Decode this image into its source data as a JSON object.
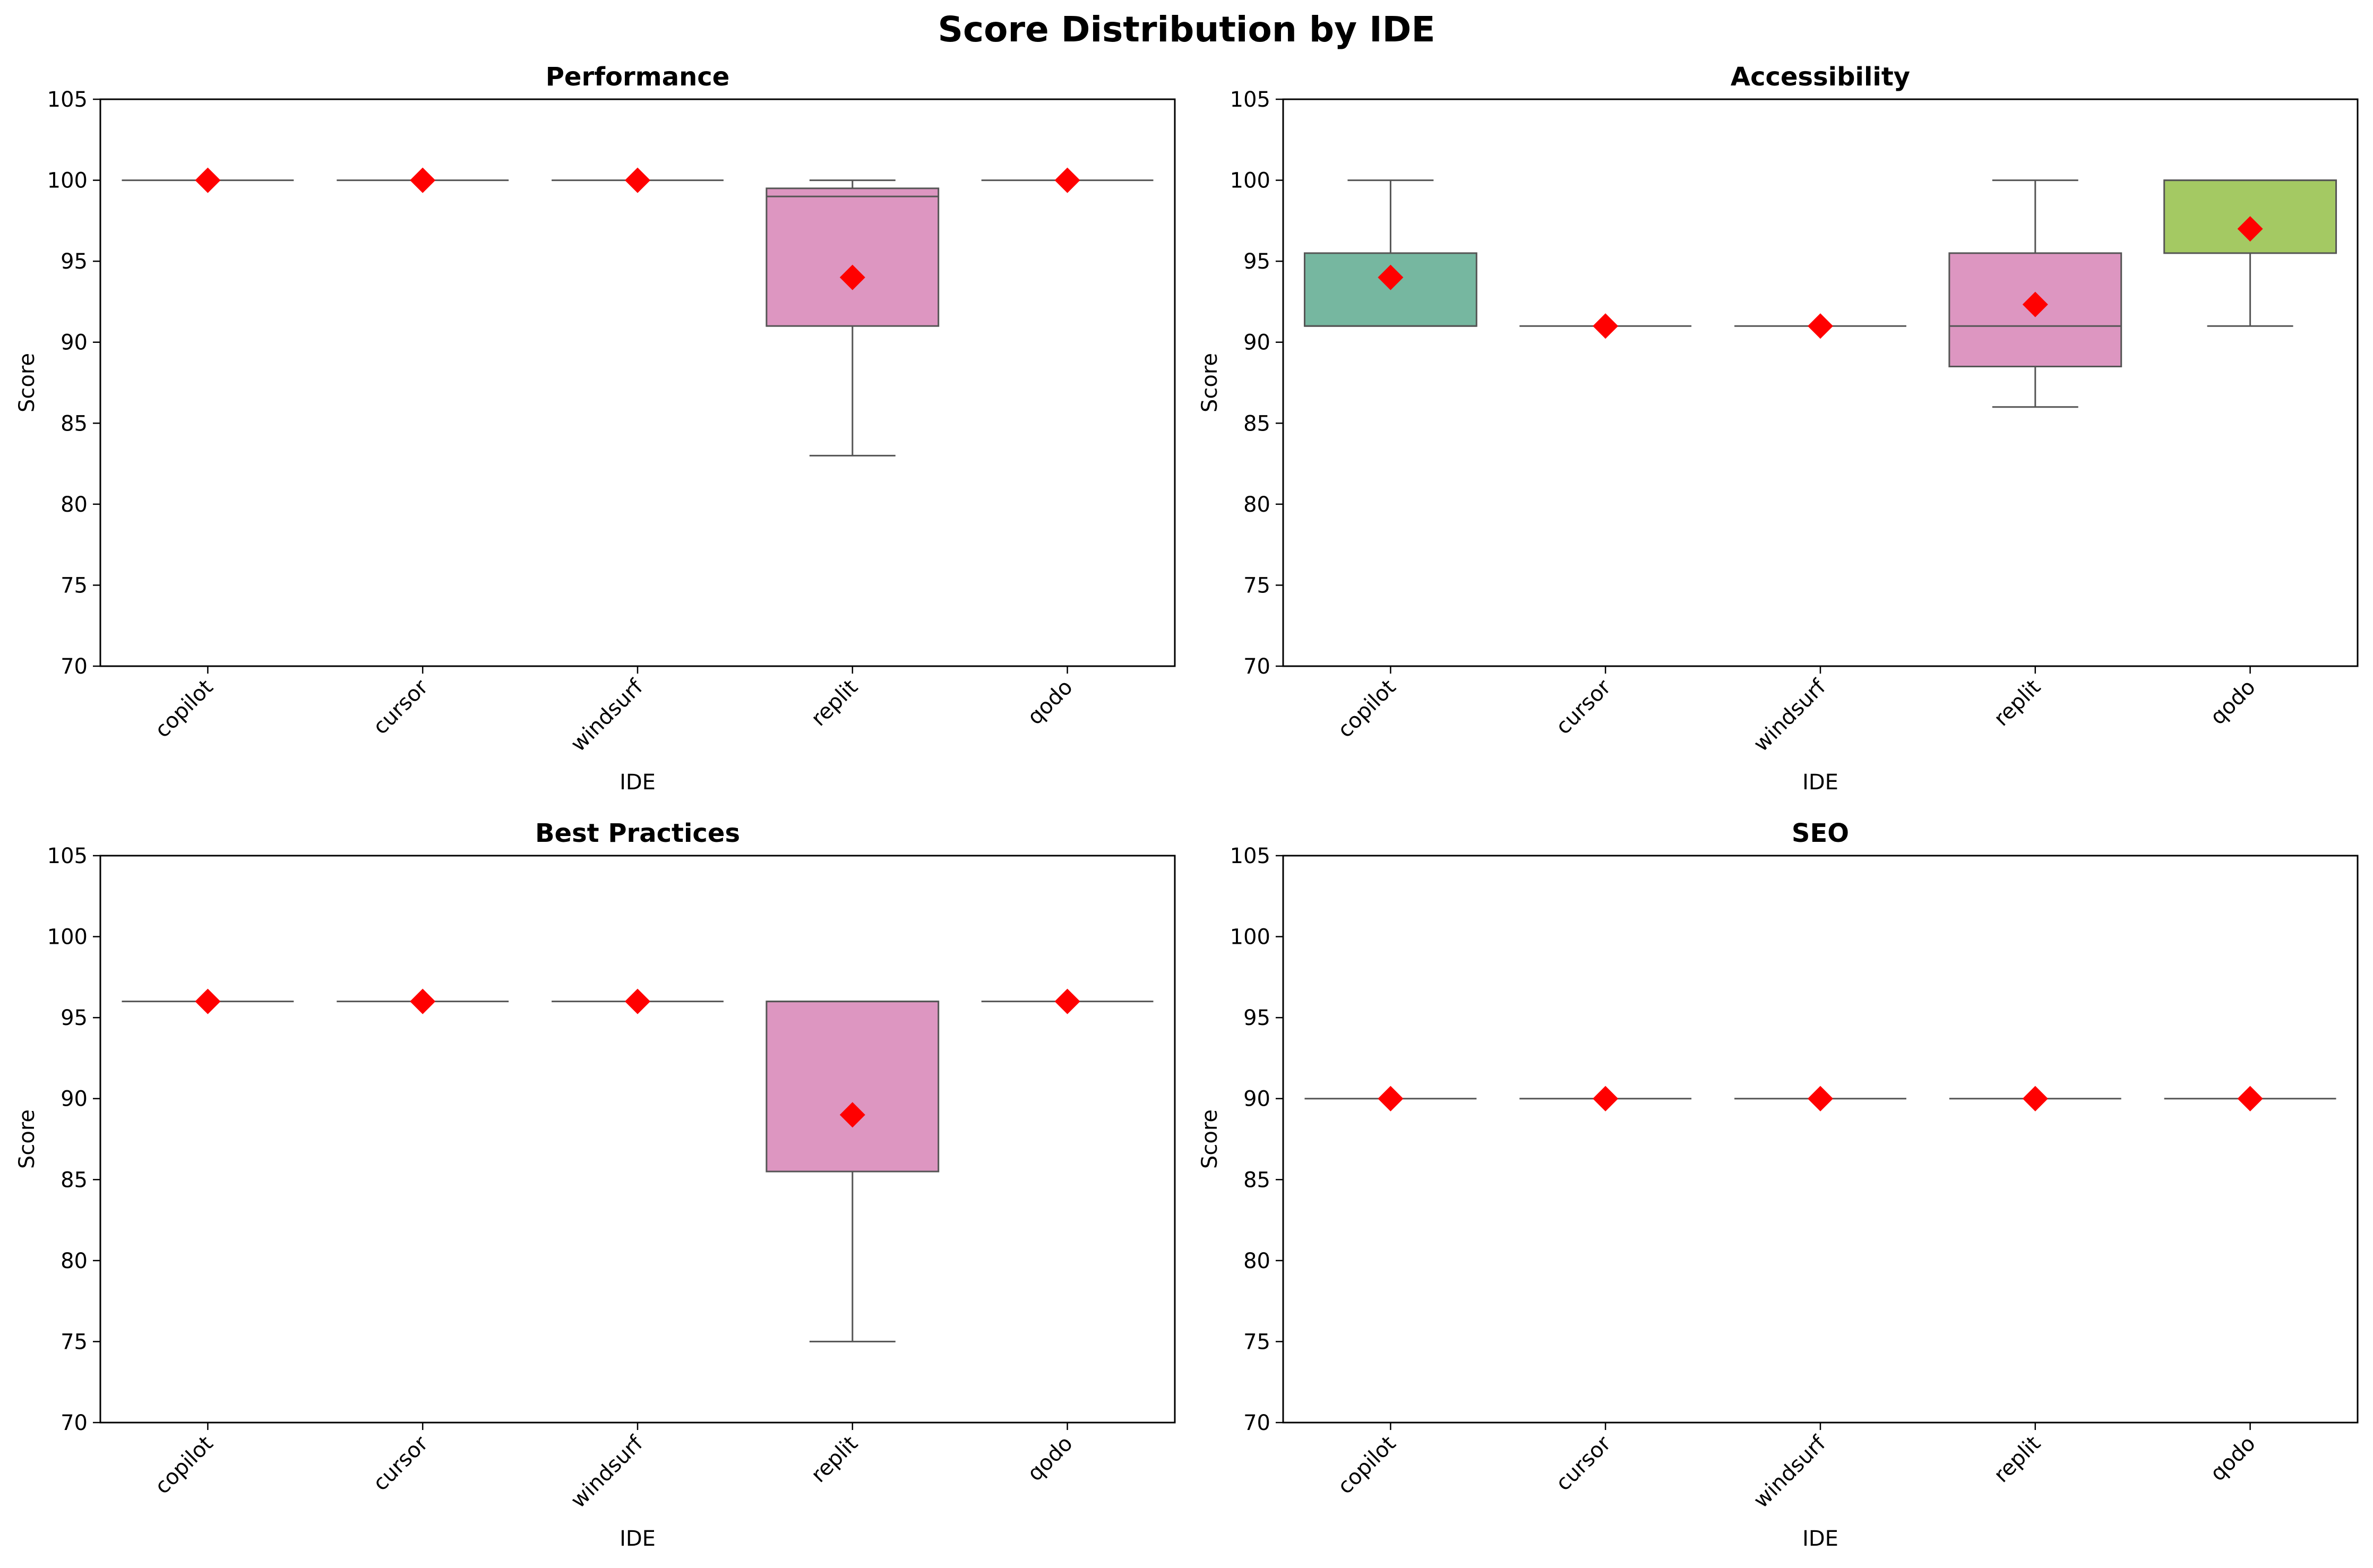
{
  "figure": {
    "title": "Score Distribution by IDE"
  },
  "colors": {
    "box_teal": "#76b7a0",
    "box_pink": "#dd96c1",
    "box_green": "#a4c963",
    "line": "#555555",
    "mean_marker": "#ff0000"
  },
  "chart_data": [
    {
      "type": "box",
      "title": "Performance",
      "xlabel": "IDE",
      "ylabel": "Score",
      "ylim": [
        70,
        105
      ],
      "yticks": [
        70,
        75,
        80,
        85,
        90,
        95,
        100,
        105
      ],
      "categories": [
        "copilot",
        "cursor",
        "windsurf",
        "replit",
        "qodo"
      ],
      "boxes": [
        {
          "q1": 100,
          "median": 100,
          "q3": 100,
          "whisker_low": 100,
          "whisker_high": 100,
          "mean": 100,
          "color": "#76b7a0"
        },
        {
          "q1": 100,
          "median": 100,
          "q3": 100,
          "whisker_low": 100,
          "whisker_high": 100,
          "mean": 100,
          "color": "#fc8d62"
        },
        {
          "q1": 100,
          "median": 100,
          "q3": 100,
          "whisker_low": 100,
          "whisker_high": 100,
          "mean": 100,
          "color": "#8da0cb"
        },
        {
          "q1": 91,
          "median": 99,
          "q3": 99.5,
          "whisker_low": 83,
          "whisker_high": 100,
          "mean": 94,
          "color": "#dd96c1"
        },
        {
          "q1": 100,
          "median": 100,
          "q3": 100,
          "whisker_low": 100,
          "whisker_high": 100,
          "mean": 100,
          "color": "#a4c963"
        }
      ]
    },
    {
      "type": "box",
      "title": "Accessibility",
      "xlabel": "IDE",
      "ylabel": "Score",
      "ylim": [
        70,
        105
      ],
      "yticks": [
        70,
        75,
        80,
        85,
        90,
        95,
        100,
        105
      ],
      "categories": [
        "copilot",
        "cursor",
        "windsurf",
        "replit",
        "qodo"
      ],
      "boxes": [
        {
          "q1": 91,
          "median": 91,
          "q3": 95.5,
          "whisker_low": 91,
          "whisker_high": 100,
          "mean": 94,
          "color": "#76b7a0"
        },
        {
          "q1": 91,
          "median": 91,
          "q3": 91,
          "whisker_low": 91,
          "whisker_high": 91,
          "mean": 91,
          "color": "#fc8d62"
        },
        {
          "q1": 91,
          "median": 91,
          "q3": 91,
          "whisker_low": 91,
          "whisker_high": 91,
          "mean": 91,
          "color": "#8da0cb"
        },
        {
          "q1": 88.5,
          "median": 91,
          "q3": 95.5,
          "whisker_low": 86,
          "whisker_high": 100,
          "mean": 92.33,
          "color": "#dd96c1"
        },
        {
          "q1": 95.5,
          "median": 100,
          "q3": 100,
          "whisker_low": 91,
          "whisker_high": 100,
          "mean": 97,
          "color": "#a4c963"
        }
      ]
    },
    {
      "type": "box",
      "title": "Best Practices",
      "xlabel": "IDE",
      "ylabel": "Score",
      "ylim": [
        70,
        105
      ],
      "yticks": [
        70,
        75,
        80,
        85,
        90,
        95,
        100,
        105
      ],
      "categories": [
        "copilot",
        "cursor",
        "windsurf",
        "replit",
        "qodo"
      ],
      "boxes": [
        {
          "q1": 96,
          "median": 96,
          "q3": 96,
          "whisker_low": 96,
          "whisker_high": 96,
          "mean": 96,
          "color": "#76b7a0"
        },
        {
          "q1": 96,
          "median": 96,
          "q3": 96,
          "whisker_low": 96,
          "whisker_high": 96,
          "mean": 96,
          "color": "#fc8d62"
        },
        {
          "q1": 96,
          "median": 96,
          "q3": 96,
          "whisker_low": 96,
          "whisker_high": 96,
          "mean": 96,
          "color": "#8da0cb"
        },
        {
          "q1": 85.5,
          "median": 96,
          "q3": 96,
          "whisker_low": 75,
          "whisker_high": 96,
          "mean": 89,
          "color": "#dd96c1"
        },
        {
          "q1": 96,
          "median": 96,
          "q3": 96,
          "whisker_low": 96,
          "whisker_high": 96,
          "mean": 96,
          "color": "#a4c963"
        }
      ]
    },
    {
      "type": "box",
      "title": "SEO",
      "xlabel": "IDE",
      "ylabel": "Score",
      "ylim": [
        70,
        105
      ],
      "yticks": [
        70,
        75,
        80,
        85,
        90,
        95,
        100,
        105
      ],
      "categories": [
        "copilot",
        "cursor",
        "windsurf",
        "replit",
        "qodo"
      ],
      "boxes": [
        {
          "q1": 90,
          "median": 90,
          "q3": 90,
          "whisker_low": 90,
          "whisker_high": 90,
          "mean": 90,
          "color": "#76b7a0"
        },
        {
          "q1": 90,
          "median": 90,
          "q3": 90,
          "whisker_low": 90,
          "whisker_high": 90,
          "mean": 90,
          "color": "#fc8d62"
        },
        {
          "q1": 90,
          "median": 90,
          "q3": 90,
          "whisker_low": 90,
          "whisker_high": 90,
          "mean": 90,
          "color": "#8da0cb"
        },
        {
          "q1": 90,
          "median": 90,
          "q3": 90,
          "whisker_low": 90,
          "whisker_high": 90,
          "mean": 90,
          "color": "#dd96c1"
        },
        {
          "q1": 90,
          "median": 90,
          "q3": 90,
          "whisker_low": 90,
          "whisker_high": 90,
          "mean": 90,
          "color": "#a4c963"
        }
      ]
    }
  ]
}
